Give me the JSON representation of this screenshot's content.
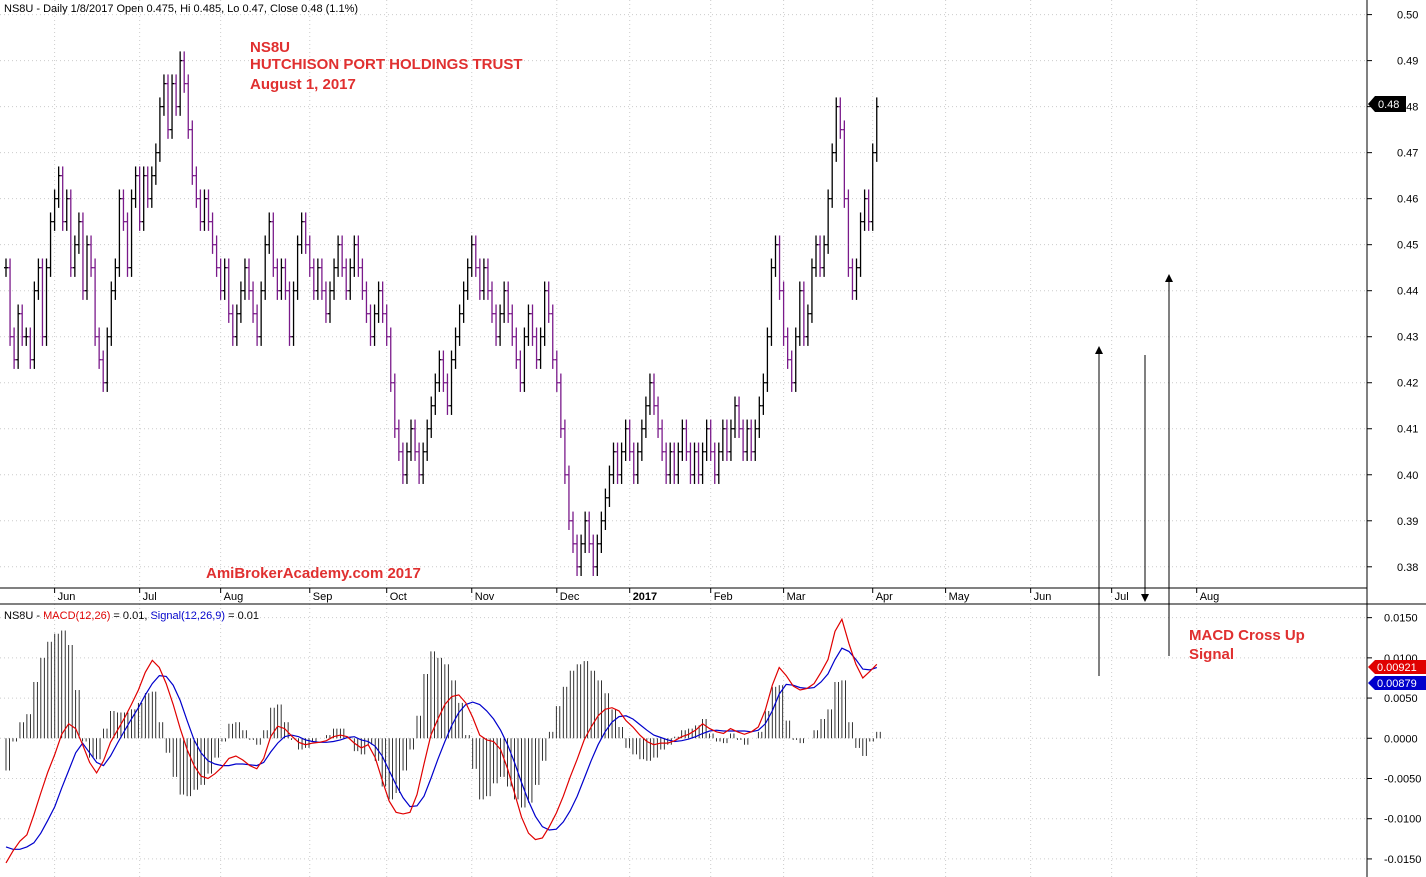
{
  "price_panel": {
    "header": "NS8U - Daily 1/8/2017 Open 0.475, Hi 0.485, Lo 0.47, Close 0.48 (1.1%)",
    "annotation_lines": [
      "NS8U",
      "HUTCHISON PORT HOLDINGS TRUST",
      "August 1, 2017"
    ],
    "watermark": "AmiBrokerAcademy.com  2017",
    "last_price_badge": "0.48"
  },
  "macd_panel": {
    "header_prefix": "NS8U - ",
    "header_macd": "MACD(12,26)",
    "header_macd_value": " = 0.01, ",
    "header_signal": "Signal(12,26,9)",
    "header_signal_value": " = 0.01",
    "annotation_lines": [
      "MACD Cross Up",
      "Signal"
    ],
    "macd_badge": "0.00921",
    "signal_badge": "0.00879"
  },
  "colors": {
    "up_bar": "#000000",
    "down_bar": "#7a1a8a",
    "macd_line": "#e00000",
    "signal_line": "#0000cc",
    "grid": "#cccccc",
    "annotation": "#e03030"
  },
  "chart_data": [
    {
      "type": "line",
      "subtype": "price-bars",
      "title": "NS8U - Daily 1/8/2017 Open 0.475, Hi 0.485, Lo 0.47, Close 0.48 (1.1%)",
      "ylim": [
        0.378,
        0.501
      ],
      "yticks": [
        "0.38",
        "0.39",
        "0.40",
        "0.41",
        "0.42",
        "0.43",
        "0.44",
        "0.45",
        "0.46",
        "0.47",
        "0.48",
        "0.49",
        "0.50"
      ],
      "xticks": [
        {
          "i": 12,
          "label": "Jun",
          "bold": false
        },
        {
          "i": 33,
          "label": "Jul",
          "bold": false
        },
        {
          "i": 53,
          "label": "Aug",
          "bold": false
        },
        {
          "i": 75,
          "label": "Sep",
          "bold": false
        },
        {
          "i": 94,
          "label": "Oct",
          "bold": false
        },
        {
          "i": 115,
          "label": "Nov",
          "bold": false
        },
        {
          "i": 136,
          "label": "Dec",
          "bold": false
        },
        {
          "i": 154,
          "label": "2017",
          "bold": true
        },
        {
          "i": 174,
          "label": "Feb",
          "bold": false
        },
        {
          "i": 192,
          "label": "Mar",
          "bold": false
        },
        {
          "i": 214,
          "label": "Apr",
          "bold": false
        },
        {
          "i": 232,
          "label": "May",
          "bold": false
        },
        {
          "i": 253,
          "label": "Jun",
          "bold": false
        },
        {
          "i": 273,
          "label": "Jul",
          "bold": false
        },
        {
          "i": 294,
          "label": "Aug",
          "bold": false
        }
      ],
      "closes": [
        0.445,
        0.43,
        0.425,
        0.435,
        0.43,
        0.43,
        0.425,
        0.44,
        0.445,
        0.43,
        0.445,
        0.455,
        0.46,
        0.465,
        0.455,
        0.46,
        0.445,
        0.45,
        0.455,
        0.44,
        0.45,
        0.445,
        0.43,
        0.425,
        0.42,
        0.43,
        0.44,
        0.445,
        0.46,
        0.455,
        0.445,
        0.46,
        0.465,
        0.455,
        0.465,
        0.46,
        0.465,
        0.47,
        0.48,
        0.485,
        0.475,
        0.485,
        0.48,
        0.49,
        0.485,
        0.475,
        0.465,
        0.46,
        0.455,
        0.46,
        0.455,
        0.45,
        0.445,
        0.44,
        0.445,
        0.435,
        0.43,
        0.435,
        0.44,
        0.445,
        0.44,
        0.435,
        0.43,
        0.44,
        0.45,
        0.455,
        0.445,
        0.44,
        0.445,
        0.44,
        0.43,
        0.44,
        0.45,
        0.455,
        0.45,
        0.445,
        0.44,
        0.445,
        0.44,
        0.435,
        0.44,
        0.445,
        0.45,
        0.445,
        0.44,
        0.445,
        0.45,
        0.445,
        0.44,
        0.435,
        0.43,
        0.435,
        0.44,
        0.435,
        0.43,
        0.42,
        0.41,
        0.405,
        0.4,
        0.405,
        0.41,
        0.405,
        0.4,
        0.405,
        0.41,
        0.415,
        0.42,
        0.425,
        0.42,
        0.415,
        0.425,
        0.43,
        0.435,
        0.44,
        0.445,
        0.45,
        0.445,
        0.44,
        0.445,
        0.44,
        0.435,
        0.43,
        0.435,
        0.44,
        0.435,
        0.43,
        0.425,
        0.42,
        0.43,
        0.435,
        0.43,
        0.425,
        0.43,
        0.44,
        0.435,
        0.425,
        0.42,
        0.41,
        0.4,
        0.39,
        0.385,
        0.38,
        0.385,
        0.39,
        0.385,
        0.38,
        0.385,
        0.39,
        0.395,
        0.4,
        0.405,
        0.4,
        0.405,
        0.41,
        0.405,
        0.4,
        0.405,
        0.41,
        0.415,
        0.42,
        0.415,
        0.41,
        0.405,
        0.4,
        0.405,
        0.4,
        0.405,
        0.41,
        0.405,
        0.4,
        0.405,
        0.4,
        0.405,
        0.41,
        0.405,
        0.4,
        0.405,
        0.41,
        0.405,
        0.41,
        0.415,
        0.41,
        0.405,
        0.41,
        0.405,
        0.41,
        0.415,
        0.42,
        0.43,
        0.445,
        0.45,
        0.44,
        0.43,
        0.425,
        0.42,
        0.43,
        0.44,
        0.43,
        0.435,
        0.445,
        0.45,
        0.445,
        0.45,
        0.46,
        0.47,
        0.48,
        0.475,
        0.46,
        0.445,
        0.44,
        0.445,
        0.455,
        0.46,
        0.455,
        0.47,
        0.48
      ],
      "x": "bar index (trading days)",
      "y": "price"
    },
    {
      "type": "line",
      "subtype": "macd",
      "title": "NS8U - MACD(12,26) = 0.01, Signal(12,26,9) = 0.01",
      "ylim": [
        -0.017,
        0.0162
      ],
      "yticks": [
        "0.0150",
        "0.0100",
        "0.0050",
        "0.0000",
        "-0.0050",
        "-0.0100",
        "-0.0150"
      ],
      "series": [
        {
          "name": "MACD(12,26)",
          "values": [
            -0.0155,
            -0.014,
            -0.0128,
            -0.012,
            -0.0095,
            -0.0068,
            -0.0042,
            -0.002,
            0.0005,
            0.0018,
            0.0012,
            -0.0008,
            -0.003,
            -0.0043,
            -0.0028,
            -0.0005,
            0.001,
            0.0025,
            0.0042,
            0.006,
            0.0082,
            0.0097,
            0.0088,
            0.0068,
            0.0042,
            0.0012,
            -0.0014,
            -0.0034,
            -0.0047,
            -0.005,
            -0.0044,
            -0.0036,
            -0.0025,
            -0.0022,
            -0.0027,
            -0.0034,
            -0.0038,
            -0.0025,
            0.0002,
            0.0015,
            0.0012,
            0.0003,
            -0.0005,
            -0.0008,
            -0.0006,
            -0.0005,
            -0.0003,
            0.0002,
            0.0004,
            0.0002,
            -0.0006,
            -0.0012,
            -0.0008,
            -0.0024,
            -0.0052,
            -0.0078,
            -0.0092,
            -0.0094,
            -0.0092,
            -0.007,
            -0.0032,
            0.0004,
            0.0024,
            0.0042,
            0.0052,
            0.0054,
            0.0044,
            0.0026,
            0.0004,
            -0.0002,
            -0.0004,
            -0.0014,
            -0.0038,
            -0.0068,
            -0.0098,
            -0.0118,
            -0.0126,
            -0.0124,
            -0.011,
            -0.0093,
            -0.0072,
            -0.0048,
            -0.0026,
            -0.0002,
            0.0014,
            0.0028,
            0.0036,
            0.0038,
            0.0034,
            0.0022,
            0.0014,
            0.0004,
            -0.0004,
            -0.0008,
            -0.0006,
            -0.0006,
            -0.0003,
            0.0002,
            0.0005,
            0.001,
            0.0018,
            0.0012,
            0.0008,
            0.0006,
            0.0012,
            0.0008,
            0.0005,
            0.0008,
            0.0014,
            0.0035,
            0.0066,
            0.0088,
            0.0078,
            0.0065,
            0.006,
            0.0062,
            0.0068,
            0.0082,
            0.0098,
            0.0133,
            0.0148,
            0.0118,
            0.0092,
            0.0075,
            0.0083,
            0.0092
          ]
        },
        {
          "name": "Signal(12,26,9)",
          "values": [
            -0.0135,
            -0.0138,
            -0.0138,
            -0.0135,
            -0.013,
            -0.0118,
            -0.0102,
            -0.0085,
            -0.0062,
            -0.004,
            -0.0018,
            -0.0006,
            -0.0018,
            -0.003,
            -0.0034,
            -0.0022,
            -0.0006,
            0.0009,
            0.0024,
            0.0038,
            0.0054,
            0.0068,
            0.0078,
            0.0077,
            0.0066,
            0.0047,
            0.0022,
            -0.0002,
            -0.0018,
            -0.0028,
            -0.0032,
            -0.0034,
            -0.0034,
            -0.0032,
            -0.0032,
            -0.0033,
            -0.0034,
            -0.003,
            -0.0017,
            -0.0006,
            0.0002,
            0.0004,
            0.0002,
            -0.0002,
            -0.0004,
            -0.0005,
            -0.0005,
            -0.0004,
            -0.0002,
            0.0001,
            0.0002,
            -0.0002,
            -0.0004,
            -0.001,
            -0.0022,
            -0.004,
            -0.0058,
            -0.0074,
            -0.0085,
            -0.0084,
            -0.0072,
            -0.005,
            -0.0026,
            -0.0004,
            0.0016,
            0.0032,
            0.0042,
            0.0045,
            0.0042,
            0.0034,
            0.0024,
            0.001,
            -0.0008,
            -0.003,
            -0.0055,
            -0.0078,
            -0.0097,
            -0.011,
            -0.0114,
            -0.0113,
            -0.0104,
            -0.009,
            -0.0072,
            -0.005,
            -0.0028,
            -0.0008,
            0.0008,
            0.002,
            0.0027,
            0.0028,
            0.0024,
            0.0017,
            0.001,
            0.0004,
            0.0001,
            -0.0002,
            -0.0004,
            -0.0003,
            -0.0001,
            0.0002,
            0.0006,
            0.0009,
            0.001,
            0.0009,
            0.0009,
            0.0009,
            0.0009,
            0.0008,
            0.001,
            0.0018,
            0.0034,
            0.0055,
            0.0067,
            0.0066,
            0.0063,
            0.0062,
            0.0063,
            0.007,
            0.008,
            0.0098,
            0.0112,
            0.0108,
            0.0098,
            0.0086,
            0.0085,
            0.0088
          ]
        }
      ]
    }
  ]
}
